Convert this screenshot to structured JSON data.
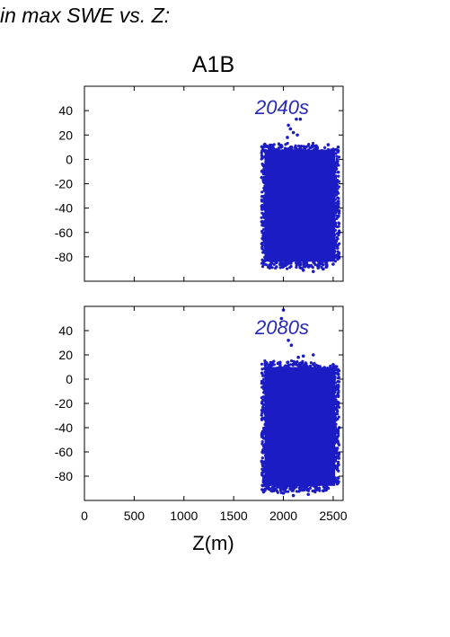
{
  "title": "in max SWE vs. Z:",
  "scenario": "A1B",
  "colors": {
    "points": "#1c1cc4",
    "label": "#2828b8",
    "axis": "#000000"
  },
  "chart_data": [
    {
      "type": "scatter",
      "annotation": "2040s",
      "xlabel": "",
      "ylabel": "",
      "xlim": [
        0,
        2600
      ],
      "ylim": [
        -100,
        60
      ],
      "yticks": [
        40,
        20,
        0,
        -20,
        -40,
        -60,
        -80
      ],
      "xticks": [
        0,
        500,
        1000,
        1500,
        2000,
        2500
      ],
      "show_xtick_labels": false,
      "grid": false,
      "cloud": {
        "xmin": 1780,
        "xmax": 2560,
        "top": 14,
        "bottom": -90
      },
      "points": [
        [
          2050,
          28
        ],
        [
          2070,
          25
        ],
        [
          2130,
          33
        ],
        [
          2170,
          33
        ],
        [
          2100,
          22
        ],
        [
          2040,
          18
        ],
        [
          2140,
          20
        ],
        [
          1800,
          -84
        ],
        [
          2000,
          -88
        ],
        [
          2200,
          -91
        ],
        [
          2350,
          -89
        ],
        [
          2500,
          -86
        ],
        [
          2550,
          10
        ],
        [
          2520,
          -80
        ],
        [
          2560,
          -60
        ],
        [
          1790,
          10
        ],
        [
          1785,
          -40
        ],
        [
          2400,
          -90
        ],
        [
          2300,
          -92
        ],
        [
          2450,
          12
        ]
      ]
    },
    {
      "type": "scatter",
      "annotation": "2080s",
      "xlabel": "Z(m)",
      "ylabel": "",
      "xlim": [
        0,
        2600
      ],
      "ylim": [
        -100,
        60
      ],
      "yticks": [
        40,
        20,
        0,
        -20,
        -40,
        -60,
        -80
      ],
      "xticks": [
        0,
        500,
        1000,
        1500,
        2000,
        2500
      ],
      "show_xtick_labels": true,
      "grid": false,
      "cloud": {
        "xmin": 1780,
        "xmax": 2560,
        "top": 16,
        "bottom": -94
      },
      "points": [
        [
          2000,
          57
        ],
        [
          1980,
          50
        ],
        [
          2050,
          32
        ],
        [
          2080,
          28
        ],
        [
          2300,
          20
        ],
        [
          2150,
          18
        ],
        [
          2500,
          12
        ],
        [
          2520,
          8
        ],
        [
          1800,
          -93
        ],
        [
          2000,
          -94
        ],
        [
          2250,
          -95
        ],
        [
          2400,
          -92
        ],
        [
          2550,
          -85
        ],
        [
          2560,
          -40
        ],
        [
          1785,
          5
        ],
        [
          1790,
          -70
        ],
        [
          2450,
          -90
        ],
        [
          2100,
          -96
        ],
        [
          2540,
          -20
        ],
        [
          2200,
          19
        ]
      ]
    }
  ]
}
